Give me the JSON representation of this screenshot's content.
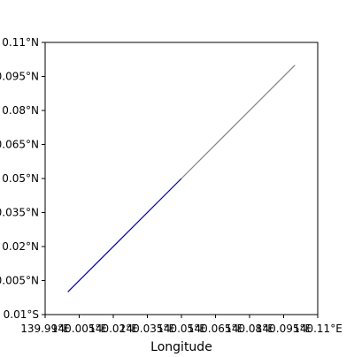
{
  "chart_data": {
    "type": "line",
    "title": "",
    "xlabel": "Longitude",
    "ylabel": "",
    "xlim": [
      139.99,
      140.11
    ],
    "ylim": [
      -0.01,
      0.11
    ],
    "x_ticks": [
      139.99,
      140.005,
      140.02,
      140.035,
      140.05,
      140.065,
      140.08,
      140.095,
      140.11
    ],
    "x_tick_labels": [
      "139.99°E",
      "140.005°E",
      "140.02°E",
      "140.035°E",
      "140.05°E",
      "140.065°E",
      "140.08°E",
      "140.095°E",
      "140.11°E"
    ],
    "y_ticks": [
      -0.01,
      0.005,
      0.02,
      0.035,
      0.05,
      0.065,
      0.08,
      0.095,
      0.11
    ],
    "y_tick_labels": [
      "0.01°S",
      "0.005°N",
      "0.02°N",
      "0.035°N",
      "0.05°N",
      "0.065°N",
      "0.08°N",
      "0.095°N",
      "0.11°N"
    ],
    "grid": false,
    "series": [
      {
        "color": "#00008b",
        "x": [
          140.0,
          140.05
        ],
        "y": [
          0.0,
          0.05
        ]
      },
      {
        "color": "#808080",
        "x": [
          140.05,
          140.1
        ],
        "y": [
          0.05,
          0.1
        ]
      }
    ]
  }
}
